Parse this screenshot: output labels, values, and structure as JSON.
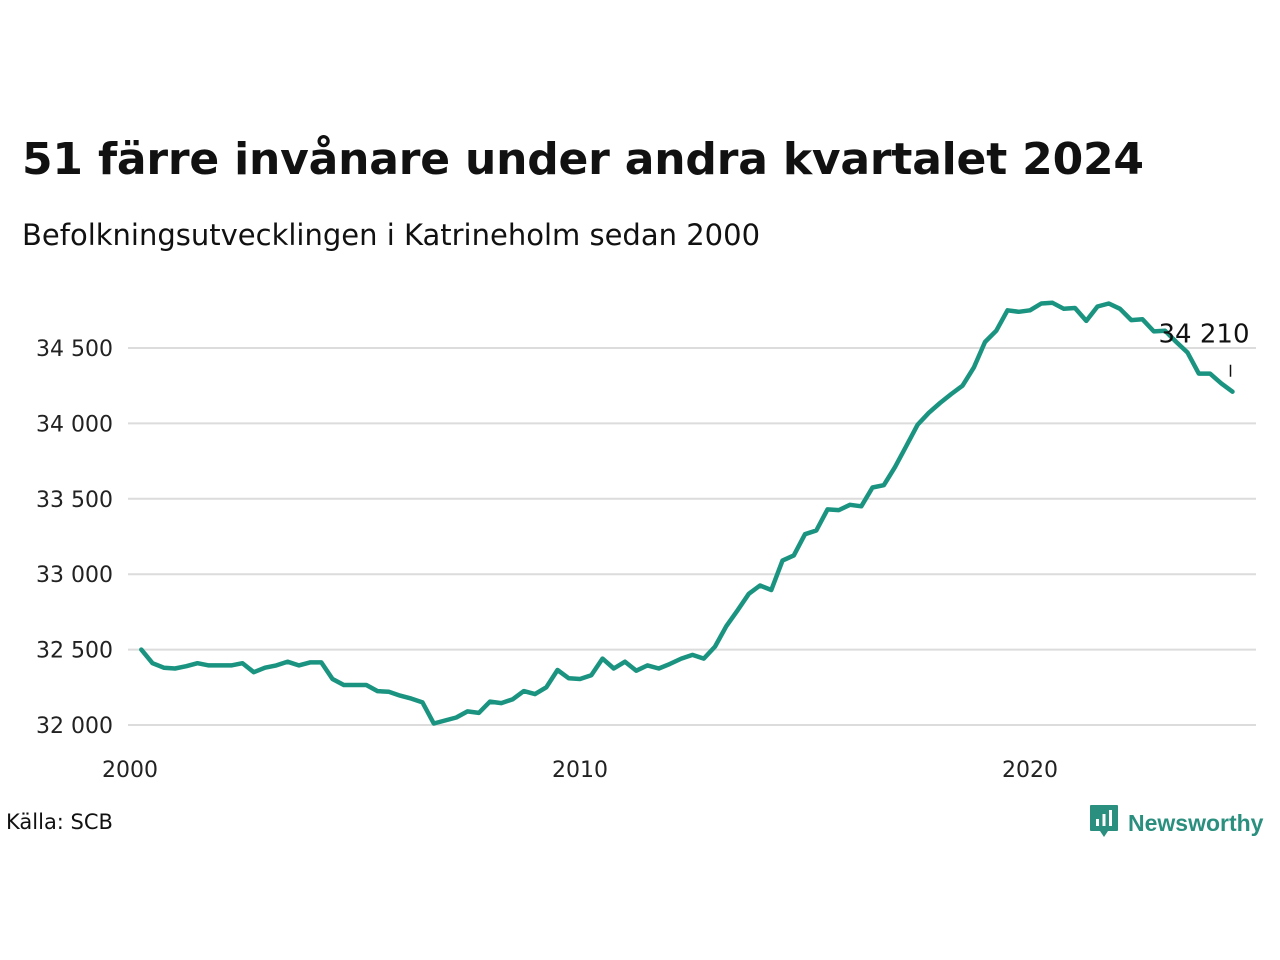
{
  "title": "51 färre invånare under andra kvartalet 2024",
  "subtitle": "Befolkningsutvecklingen i Katrineholm sedan 2000",
  "source": "Källa: SCB",
  "brand": {
    "name": "Newsworthy",
    "icon": "newsworthy-logo-icon",
    "color": "#2a8f7e"
  },
  "chart_data": {
    "type": "line",
    "title": "51 färre invånare under andra kvartalet 2024",
    "xlabel": "",
    "ylabel": "",
    "ylim": [
      31900,
      34900
    ],
    "xlim": [
      2000,
      2025.2
    ],
    "y_ticks": [
      32000,
      32500,
      33000,
      33500,
      34000,
      34500
    ],
    "y_tick_labels": [
      "32 000",
      "32 500",
      "33 000",
      "33 500",
      "34 000",
      "34 500"
    ],
    "x_ticks": [
      2000,
      2010,
      2020
    ],
    "x_tick_labels": [
      "2000",
      "2010",
      "2020"
    ],
    "grid": "horizontal",
    "line_color": "#1a9480",
    "end_label": "34 210",
    "series": [
      {
        "x": [
          2000.25,
          2000.5,
          2000.75,
          2001,
          2001.25,
          2001.5,
          2001.75,
          2002,
          2002.25,
          2002.5,
          2002.75,
          2003,
          2003.25,
          2003.5,
          2003.75,
          2004,
          2004.25,
          2004.5,
          2004.75,
          2005,
          2005.25,
          2005.5,
          2005.75,
          2006,
          2006.25,
          2006.5,
          2006.75,
          2007,
          2007.25,
          2007.5,
          2007.75,
          2008,
          2008.25,
          2008.5,
          2008.75,
          2009,
          2009.25,
          2009.5,
          2009.75,
          2010,
          2010.25,
          2010.5,
          2010.75,
          2011,
          2011.25,
          2011.5,
          2011.75,
          2012,
          2012.25,
          2012.5,
          2012.75,
          2013,
          2013.25,
          2013.5,
          2013.75,
          2014,
          2014.25,
          2014.5,
          2014.75,
          2015,
          2015.25,
          2015.5,
          2015.75,
          2016,
          2016.25,
          2016.5,
          2016.75,
          2017,
          2017.25,
          2017.5,
          2017.75,
          2018,
          2018.25,
          2018.5,
          2018.75,
          2019,
          2019.25,
          2019.5,
          2019.75,
          2020,
          2020.25,
          2020.5,
          2020.75,
          2021,
          2021.25,
          2021.5,
          2021.75,
          2022,
          2022.25,
          2022.5,
          2022.75,
          2023,
          2023.25,
          2023.5,
          2023.75,
          2024,
          2024.25,
          2024.5
        ],
        "values": [
          32500,
          32410,
          32380,
          32375,
          32390,
          32410,
          32395,
          32395,
          32395,
          32410,
          32350,
          32380,
          32395,
          32420,
          32395,
          32415,
          32415,
          32305,
          32265,
          32265,
          32265,
          32225,
          32220,
          32195,
          32175,
          32150,
          32010,
          32030,
          32050,
          32090,
          32080,
          32155,
          32145,
          32170,
          32225,
          32205,
          32250,
          32365,
          32310,
          32305,
          32330,
          32440,
          32375,
          32420,
          32360,
          32395,
          32375,
          32405,
          32440,
          32465,
          32440,
          32520,
          32655,
          32760,
          32870,
          32925,
          32895,
          33090,
          33125,
          33265,
          33290,
          33430,
          33425,
          33460,
          33450,
          33575,
          33590,
          33710,
          33850,
          33990,
          34070,
          34135,
          34195,
          34250,
          34370,
          34540,
          34615,
          34750,
          34740,
          34750,
          34795,
          34800,
          34760,
          34765,
          34680,
          34775,
          34795,
          34760,
          34685,
          34690,
          34610,
          34615,
          34540,
          34470,
          34330,
          34330,
          34265,
          34210
        ]
      }
    ]
  }
}
